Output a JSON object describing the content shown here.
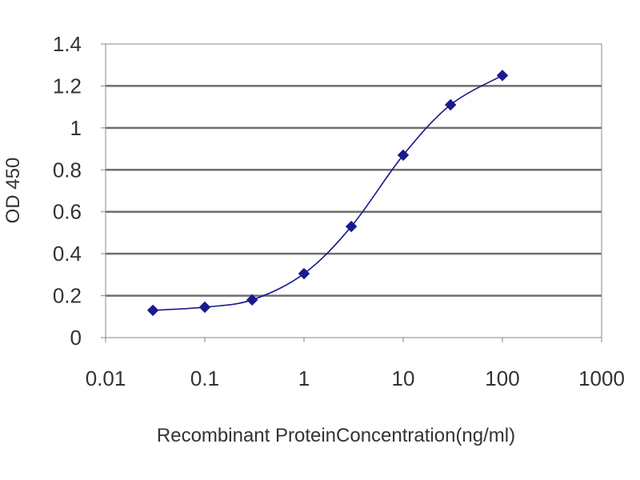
{
  "chart_data": {
    "type": "line",
    "title": "",
    "xlabel": "Recombinant ProteinConcentration(ng/ml)",
    "ylabel": "OD 450",
    "x_scale": "log",
    "xlim": [
      0.01,
      1000
    ],
    "ylim": [
      0,
      1.4
    ],
    "x_ticks": [
      0.01,
      0.1,
      1,
      10,
      100,
      1000
    ],
    "x_tick_labels": [
      "0.01",
      "0.1",
      "1",
      "10",
      "100",
      "1000"
    ],
    "y_ticks": [
      0,
      0.2,
      0.4,
      0.6,
      0.8,
      1,
      1.2,
      1.4
    ],
    "y_tick_labels": [
      "0",
      "0.2",
      "0.4",
      "0.6",
      "0.8",
      "1",
      "1.2",
      "1.4"
    ],
    "grid": "horizontal",
    "legend": "none",
    "series": [
      {
        "x": [
          0.03,
          0.1,
          0.3,
          1,
          3,
          10,
          30,
          100
        ],
        "y": [
          0.13,
          0.145,
          0.18,
          0.305,
          0.53,
          0.87,
          1.11,
          1.25
        ],
        "color": "#1a1a8c"
      }
    ]
  }
}
